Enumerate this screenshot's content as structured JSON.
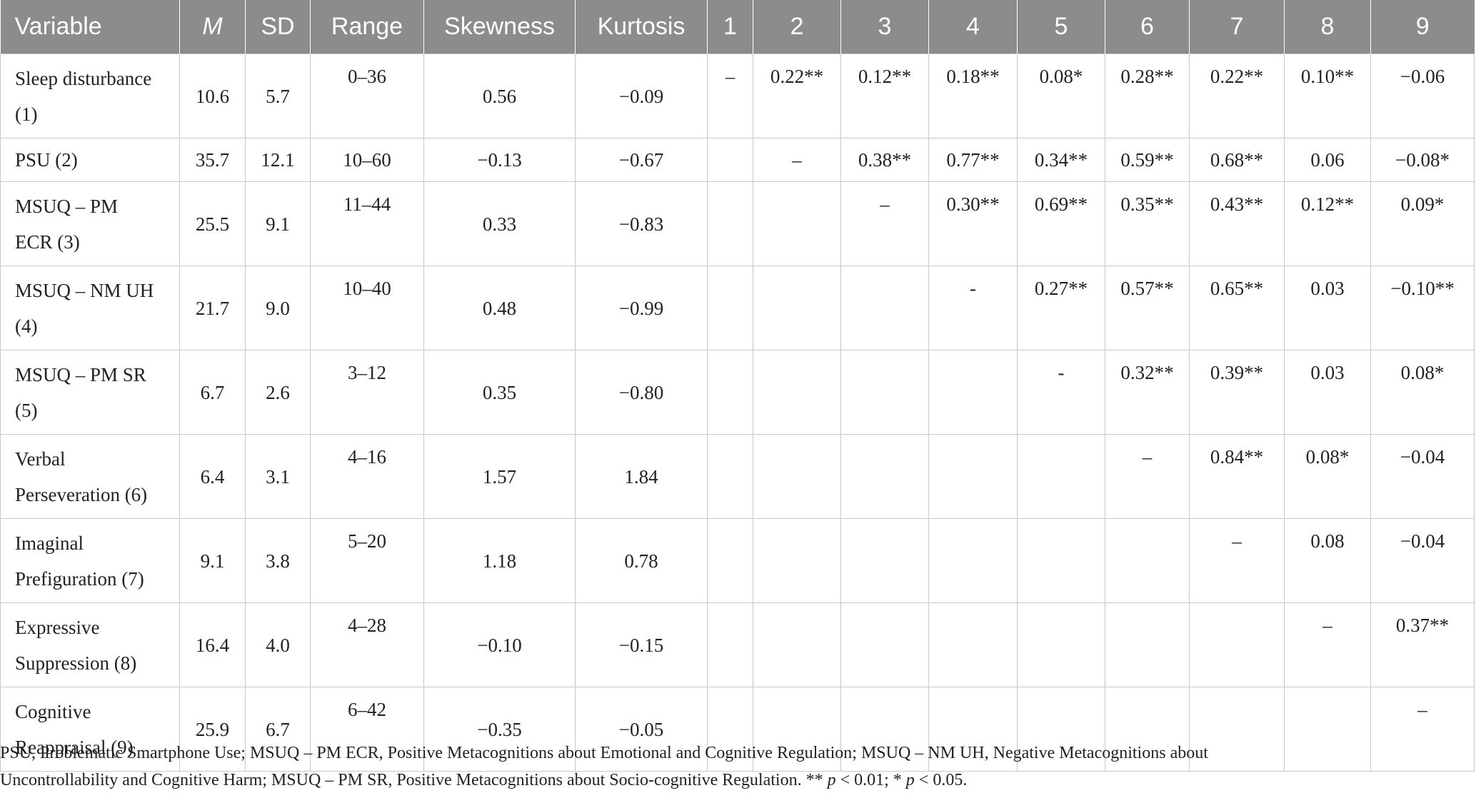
{
  "table": {
    "headers": [
      "Variable",
      "M",
      "SD",
      "Range",
      "Skewness",
      "Kurtosis",
      "1",
      "2",
      "3",
      "4",
      "5",
      "6",
      "7",
      "8",
      "9"
    ],
    "rows": [
      {
        "variable": [
          "Sleep disturbance",
          "(1)"
        ],
        "m": "10.6",
        "sd": "5.7",
        "range": "0–36",
        "skewness": "0.56",
        "kurtosis": "−0.09",
        "corr": [
          "–",
          "0.22**",
          "0.12**",
          "0.18**",
          "0.08*",
          "0.28**",
          "0.22**",
          "0.10**",
          "−0.06"
        ]
      },
      {
        "variable": [
          "PSU (2)"
        ],
        "m": "35.7",
        "sd": "12.1",
        "range": "10–60",
        "skewness": "−0.13",
        "kurtosis": "−0.67",
        "corr": [
          "",
          "–",
          "0.38**",
          "0.77**",
          "0.34**",
          "0.59**",
          "0.68**",
          "0.06",
          "−0.08*"
        ]
      },
      {
        "variable": [
          "MSUQ – PM",
          "ECR (3)"
        ],
        "m": "25.5",
        "sd": "9.1",
        "range": "11–44",
        "skewness": "0.33",
        "kurtosis": "−0.83",
        "corr": [
          "",
          "",
          "–",
          "0.30**",
          "0.69**",
          "0.35**",
          "0.43**",
          "0.12**",
          "0.09*"
        ]
      },
      {
        "variable": [
          "MSUQ – NM UH",
          "(4)"
        ],
        "m": "21.7",
        "sd": "9.0",
        "range": "10–40",
        "skewness": "0.48",
        "kurtosis": "−0.99",
        "corr": [
          "",
          "",
          "",
          "-",
          "0.27**",
          "0.57**",
          "0.65**",
          "0.03",
          "−0.10**"
        ]
      },
      {
        "variable": [
          "MSUQ – PM SR",
          "(5)"
        ],
        "m": "6.7",
        "sd": "2.6",
        "range": "3–12",
        "skewness": "0.35",
        "kurtosis": "−0.80",
        "corr": [
          "",
          "",
          "",
          "",
          "-",
          "0.32**",
          "0.39**",
          "0.03",
          "0.08*"
        ]
      },
      {
        "variable": [
          "Verbal",
          "Perseveration (6)"
        ],
        "m": "6.4",
        "sd": "3.1",
        "range": "4–16",
        "skewness": "1.57",
        "kurtosis": "1.84",
        "corr": [
          "",
          "",
          "",
          "",
          "",
          "–",
          "0.84**",
          "0.08*",
          "−0.04"
        ]
      },
      {
        "variable": [
          "Imaginal",
          "Prefiguration (7)"
        ],
        "m": "9.1",
        "sd": "3.8",
        "range": "5–20",
        "skewness": "1.18",
        "kurtosis": "0.78",
        "corr": [
          "",
          "",
          "",
          "",
          "",
          "",
          "–",
          "0.08",
          "−0.04"
        ]
      },
      {
        "variable": [
          "Expressive",
          "Suppression (8)"
        ],
        "m": "16.4",
        "sd": "4.0",
        "range": "4–28",
        "skewness": "−0.10",
        "kurtosis": "−0.15",
        "corr": [
          "",
          "",
          "",
          "",
          "",
          "",
          "",
          "–",
          "0.37**"
        ]
      },
      {
        "variable": [
          "Cognitive",
          "Reappraisal (9)"
        ],
        "m": "25.9",
        "sd": "6.7",
        "range": "6–42",
        "skewness": "−0.35",
        "kurtosis": "−0.05",
        "corr": [
          "",
          "",
          "",
          "",
          "",
          "",
          "",
          "",
          "–"
        ]
      }
    ]
  },
  "note": {
    "line1": "PSU, Problematic Smartphone Use; MSUQ – PM ECR, Positive Metacognitions about Emotional and Cognitive Regulation; MSUQ – NM UH, Negative Metacognitions about",
    "line2_text": "Uncontrollability and Cognitive Harm; MSUQ – PM SR, Positive Metacognitions about Socio-cognitive Regulation. **",
    "p_symbol": "p",
    "p_rule1": "< 0.01; *",
    "p_rule2": "< 0.05."
  }
}
